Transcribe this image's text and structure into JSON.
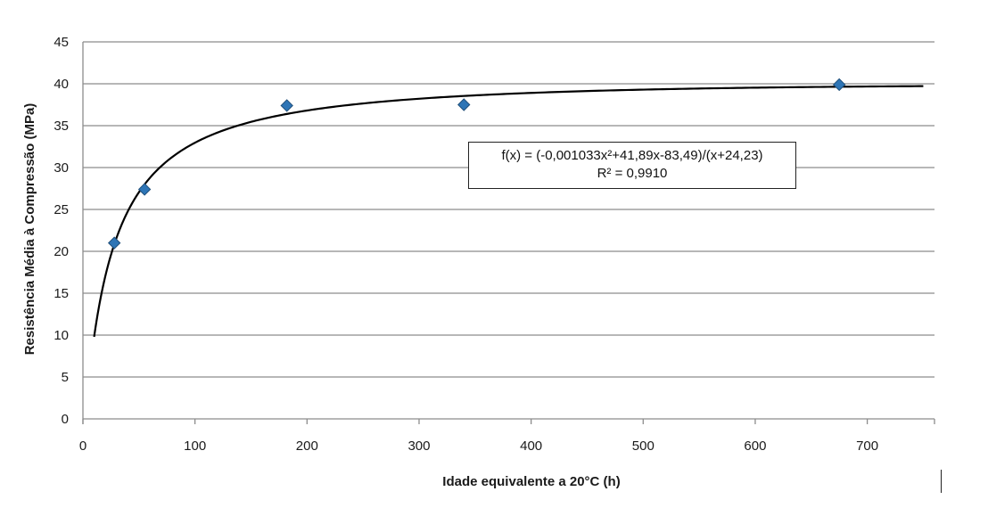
{
  "chart_data": {
    "type": "scatter",
    "title": "",
    "xlabel": "Idade equivalente a 20°C (h)",
    "ylabel": "Resistência Média à Compressão (MPa)",
    "xlim": [
      0,
      760
    ],
    "ylim": [
      0,
      45
    ],
    "xticks": [
      "0",
      "100",
      "200",
      "300",
      "400",
      "500",
      "600",
      "700"
    ],
    "yticks": [
      "0",
      "5",
      "10",
      "15",
      "20",
      "25",
      "30",
      "35",
      "40",
      "45"
    ],
    "grid": "horizontal",
    "series": [
      {
        "color": "#2e75b6",
        "marker": "diamond",
        "points": [
          {
            "x": 28,
            "y": 21.0
          },
          {
            "x": 55,
            "y": 27.4
          },
          {
            "x": 182,
            "y": 37.4
          },
          {
            "x": 340,
            "y": 37.5
          },
          {
            "x": 675,
            "y": 39.9
          }
        ]
      }
    ],
    "trendline": {
      "formula": "f(x) = (-0,001033x²+41,89x-83,49)/(x+24,23)",
      "r2": "R² = 0,9910",
      "color": "#000000",
      "x_range": [
        10,
        750
      ]
    }
  }
}
